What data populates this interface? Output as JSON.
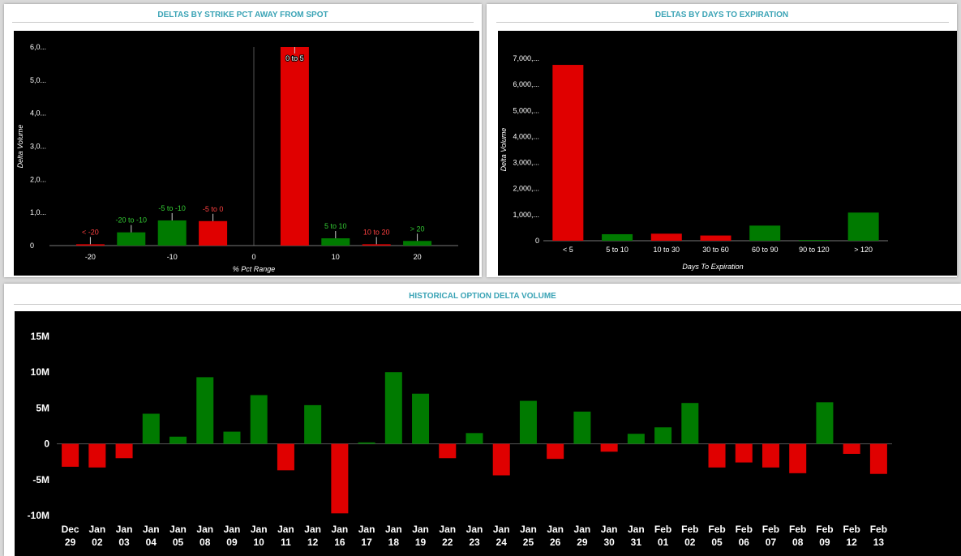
{
  "panels": {
    "strike": {
      "title": "DELTAS BY STRIKE PCT AWAY FROM SPOT"
    },
    "days": {
      "title": "DELTAS BY DAYS TO EXPIRATION"
    },
    "history": {
      "title": "HISTORICAL OPTION DELTA VOLUME"
    }
  },
  "colors": {
    "positive": "#007a00",
    "negative": "#e00000",
    "axis_text": "#ffffff",
    "title": "#3aa3b5"
  },
  "chart_data": [
    {
      "type": "bar",
      "title": "DELTAS BY STRIKE PCT AWAY FROM SPOT",
      "xlabel": "% Pct Range",
      "ylabel": "Delta Volume",
      "ylim": [
        0,
        6000
      ],
      "yticks": [
        0,
        1000,
        2000,
        3000,
        4000,
        5000,
        6000
      ],
      "ytick_labels": [
        "0",
        "1,0...",
        "2,0...",
        "3,0...",
        "4,0...",
        "5,0...",
        "6,0..."
      ],
      "xlim": [
        -25,
        25
      ],
      "xticks": [
        -20,
        -10,
        0,
        10,
        20
      ],
      "xtick_labels": [
        "-20",
        "-10",
        "0",
        "10",
        "20"
      ],
      "bars": [
        {
          "label": "< -20",
          "center": -20,
          "value": 40,
          "color": "#e00000"
        },
        {
          "label": "-20 to -10",
          "center": -15,
          "value": 400,
          "color": "#007a00"
        },
        {
          "label": "-5 to -10",
          "center": -10,
          "value": 760,
          "color": "#007a00"
        },
        {
          "label": "-5 to 0",
          "center": -5,
          "value": 740,
          "color": "#e00000"
        },
        {
          "label": "0 to 5",
          "center": 5,
          "value": 6000,
          "color": "#e00000"
        },
        {
          "label": "5 to 10",
          "center": 10,
          "value": 220,
          "color": "#007a00"
        },
        {
          "label": "10 to 20",
          "center": 15,
          "value": 40,
          "color": "#e00000"
        },
        {
          "label": "> 20",
          "center": 20,
          "value": 140,
          "color": "#007a00"
        }
      ]
    },
    {
      "type": "bar",
      "title": "DELTAS BY DAYS TO EXPIRATION",
      "xlabel": "Days To Expiration",
      "ylabel": "Delta Volume",
      "ylim": [
        0,
        7000
      ],
      "yticks": [
        0,
        1000,
        2000,
        3000,
        4000,
        5000,
        6000,
        7000
      ],
      "ytick_labels": [
        "0",
        "1,000,...",
        "2,000,...",
        "3,000,...",
        "4,000,...",
        "5,000,...",
        "6,000,...",
        "7,000,..."
      ],
      "categories": [
        "< 5",
        "5 to 10",
        "10 to 30",
        "30 to 60",
        "60 to 90",
        "90 to 120",
        "> 120"
      ],
      "values": [
        6750,
        250,
        270,
        200,
        580,
        30,
        1080
      ],
      "bar_colors": [
        "#e00000",
        "#007a00",
        "#e00000",
        "#e00000",
        "#007a00",
        "#007a00",
        "#007a00"
      ]
    },
    {
      "type": "bar",
      "title": "HISTORICAL OPTION DELTA VOLUME",
      "xlabel": "",
      "ylabel": "",
      "ylim": [
        -10,
        15
      ],
      "units": "M",
      "yticks": [
        -10,
        -5,
        0,
        5,
        10,
        15
      ],
      "ytick_labels": [
        "-10M",
        "-5M",
        "0",
        "5M",
        "10M",
        "15M"
      ],
      "categories": [
        [
          "Dec",
          "29"
        ],
        [
          "Jan",
          "02"
        ],
        [
          "Jan",
          "03"
        ],
        [
          "Jan",
          "04"
        ],
        [
          "Jan",
          "05"
        ],
        [
          "Jan",
          "08"
        ],
        [
          "Jan",
          "09"
        ],
        [
          "Jan",
          "10"
        ],
        [
          "Jan",
          "11"
        ],
        [
          "Jan",
          "12"
        ],
        [
          "Jan",
          "16"
        ],
        [
          "Jan",
          "17"
        ],
        [
          "Jan",
          "18"
        ],
        [
          "Jan",
          "19"
        ],
        [
          "Jan",
          "22"
        ],
        [
          "Jan",
          "23"
        ],
        [
          "Jan",
          "24"
        ],
        [
          "Jan",
          "25"
        ],
        [
          "Jan",
          "26"
        ],
        [
          "Jan",
          "29"
        ],
        [
          "Jan",
          "30"
        ],
        [
          "Jan",
          "31"
        ],
        [
          "Feb",
          "01"
        ],
        [
          "Feb",
          "02"
        ],
        [
          "Feb",
          "05"
        ],
        [
          "Feb",
          "06"
        ],
        [
          "Feb",
          "07"
        ],
        [
          "Feb",
          "08"
        ],
        [
          "Feb",
          "09"
        ],
        [
          "Feb",
          "12"
        ],
        [
          "Feb",
          "13"
        ]
      ],
      "values": [
        -3.2,
        -3.3,
        -2.0,
        4.2,
        1.0,
        9.3,
        1.7,
        6.8,
        -3.7,
        5.4,
        -9.7,
        0.2,
        10.0,
        7.0,
        -2.0,
        1.5,
        -4.4,
        6.0,
        -2.1,
        4.5,
        -1.1,
        1.4,
        2.3,
        5.7,
        -3.3,
        -2.6,
        -3.3,
        -4.1,
        5.8,
        -1.4,
        -4.2
      ]
    }
  ]
}
